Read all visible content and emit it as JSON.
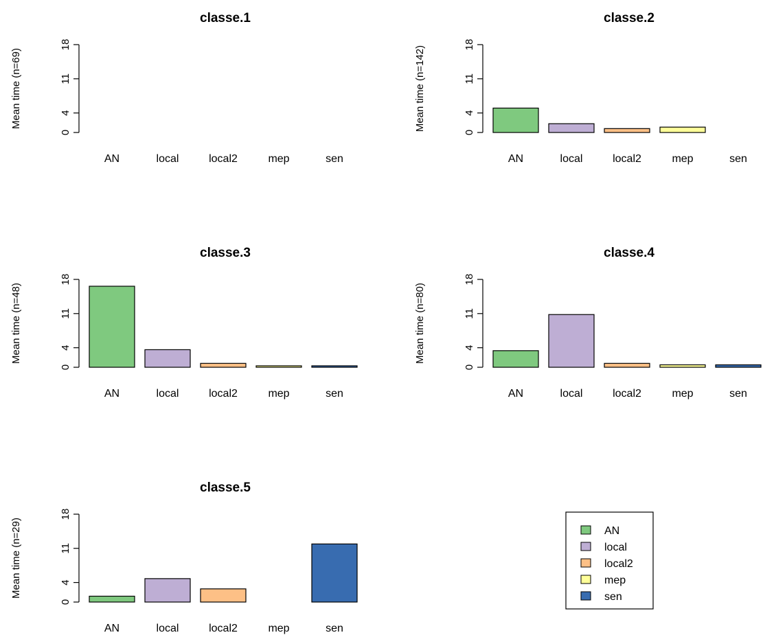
{
  "chart_data": [
    {
      "type": "bar",
      "title": "classe.1",
      "ylabel": "Mean time (n=69)",
      "categories": [
        "AN",
        "local",
        "local2",
        "mep",
        "sen"
      ],
      "values": [
        0,
        0,
        0,
        0,
        0
      ],
      "ylim": [
        0,
        18
      ],
      "yticks": [
        "0",
        "4",
        "11",
        "18"
      ]
    },
    {
      "type": "bar",
      "title": "classe.2",
      "ylabel": "Mean time (n=142)",
      "categories": [
        "AN",
        "local",
        "local2",
        "mep",
        "sen"
      ],
      "values": [
        5.0,
        1.8,
        0.8,
        1.1,
        0
      ],
      "ylim": [
        0,
        18
      ],
      "yticks": [
        "0",
        "4",
        "11",
        "18"
      ]
    },
    {
      "type": "bar",
      "title": "classe.3",
      "ylabel": "Mean time (n=48)",
      "categories": [
        "AN",
        "local",
        "local2",
        "mep",
        "sen"
      ],
      "values": [
        16.6,
        3.6,
        0.8,
        0.3,
        0.3
      ],
      "ylim": [
        0,
        18
      ],
      "yticks": [
        "0",
        "4",
        "11",
        "18"
      ]
    },
    {
      "type": "bar",
      "title": "classe.4",
      "ylabel": "Mean time (n=80)",
      "categories": [
        "AN",
        "local",
        "local2",
        "mep",
        "sen"
      ],
      "values": [
        3.4,
        10.8,
        0.8,
        0.5,
        0.5
      ],
      "ylim": [
        0,
        18
      ],
      "yticks": [
        "0",
        "4",
        "11",
        "18"
      ]
    },
    {
      "type": "bar",
      "title": "classe.5",
      "ylabel": "Mean time (n=29)",
      "categories": [
        "AN",
        "local",
        "local2",
        "mep",
        "sen"
      ],
      "values": [
        1.2,
        4.8,
        2.7,
        0,
        11.9
      ],
      "ylim": [
        0,
        18
      ],
      "yticks": [
        "0",
        "4",
        "11",
        "18"
      ]
    }
  ],
  "legend": {
    "placement": "bottom-right",
    "items": [
      {
        "label": "AN",
        "color": "#7fc97f"
      },
      {
        "label": "local",
        "color": "#beaed4"
      },
      {
        "label": "local2",
        "color": "#fdc086"
      },
      {
        "label": "mep",
        "color": "#ffff99"
      },
      {
        "label": "sen",
        "color": "#386cb0"
      }
    ]
  },
  "colors": {
    "AN": "#7fc97f",
    "local": "#beaed4",
    "local2": "#fdc086",
    "mep": "#ffff99",
    "sen": "#386cb0"
  }
}
